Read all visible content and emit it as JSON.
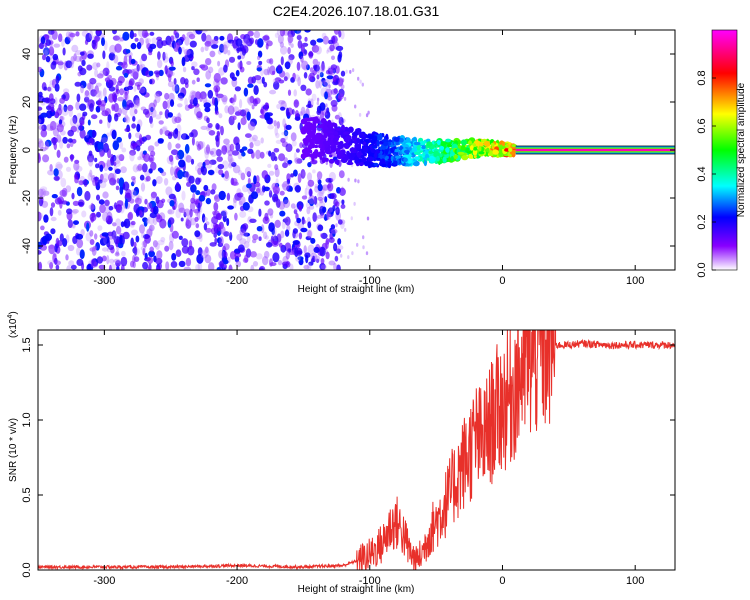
{
  "figure": {
    "title": "C2E4.2026.107.18.01.G31"
  },
  "chart_data": [
    {
      "type": "heatmap",
      "xlabel": "Height of straight line (km)",
      "ylabel": "Frequency (Hz)",
      "xlim": [
        -350,
        130
      ],
      "ylim": [
        -50,
        50
      ],
      "x_ticks": [
        -300,
        -200,
        -100,
        0,
        100
      ],
      "x_tick_labels": [
        "-300",
        "-200",
        "-100",
        "0",
        "100"
      ],
      "y_ticks": [
        -40,
        -20,
        0,
        20,
        40
      ],
      "y_tick_labels": [
        "-40",
        "-20",
        "0",
        "20",
        "40"
      ],
      "colorbar": {
        "label": "Normalized spectral amplitude",
        "range": [
          0,
          1
        ],
        "ticks": [
          0.0,
          0.2,
          0.4,
          0.6,
          0.8
        ],
        "tick_labels": [
          "0.0",
          "0.2",
          "0.4",
          "0.6",
          "0.8"
        ],
        "colormap": [
          "#ffffff",
          "#6a00ff",
          "#0000ff",
          "#00ffff",
          "#00ff00",
          "#ffff00",
          "#ff0000",
          "#ff00ff"
        ]
      },
      "regions": [
        {
          "name": "noise",
          "x_range": [
            -350,
            -130
          ],
          "freq_range": [
            -50,
            50
          ],
          "amplitude": [
            0.0,
            0.15
          ]
        },
        {
          "name": "acquisition",
          "x_range": [
            -150,
            10
          ],
          "center_freq_start": 6,
          "center_freq_end": 0,
          "amplitude": [
            0.1,
            0.9
          ]
        },
        {
          "name": "tracking",
          "x_range": [
            10,
            130
          ],
          "center_freq": 0,
          "amplitude": 0.95
        }
      ]
    },
    {
      "type": "line",
      "xlabel": "Height of straight line (km)",
      "ylabel": "SNR (10 * v/v)",
      "y_multiplier": "(x10",
      "y_multiplier_exp": "4",
      "xlim": [
        -350,
        130
      ],
      "ylim": [
        0,
        1.6
      ],
      "x_ticks": [
        -300,
        -200,
        -100,
        0,
        100
      ],
      "x_tick_labels": [
        "-300",
        "-200",
        "-100",
        "0",
        "100"
      ],
      "y_ticks": [
        0.0,
        0.5,
        1.0,
        1.5
      ],
      "y_tick_labels": [
        "0.0",
        "0.5",
        "1.0",
        "1.5"
      ],
      "color": "#e8302a",
      "series": [
        {
          "x": [
            -350,
            -300,
            -250,
            -200,
            -150,
            -120,
            -110,
            -100,
            -90,
            -85,
            -80,
            -75,
            -70,
            -65,
            -60,
            -55,
            -50,
            -45,
            -40,
            -35,
            -30,
            -25,
            -20,
            -15,
            -10,
            -5,
            0,
            5,
            10,
            15,
            20,
            25,
            30,
            35,
            40,
            50,
            60,
            80,
            100,
            130
          ],
          "y": [
            0.02,
            0.02,
            0.02,
            0.03,
            0.02,
            0.03,
            0.06,
            0.1,
            0.18,
            0.28,
            0.32,
            0.25,
            0.12,
            0.06,
            0.12,
            0.25,
            0.32,
            0.4,
            0.5,
            0.6,
            0.7,
            0.78,
            0.88,
            0.85,
            0.95,
            1.05,
            1.1,
            1.15,
            1.25,
            1.35,
            1.4,
            1.44,
            1.47,
            1.49,
            1.5,
            1.5,
            1.51,
            1.5,
            1.5,
            1.5
          ]
        }
      ]
    }
  ]
}
